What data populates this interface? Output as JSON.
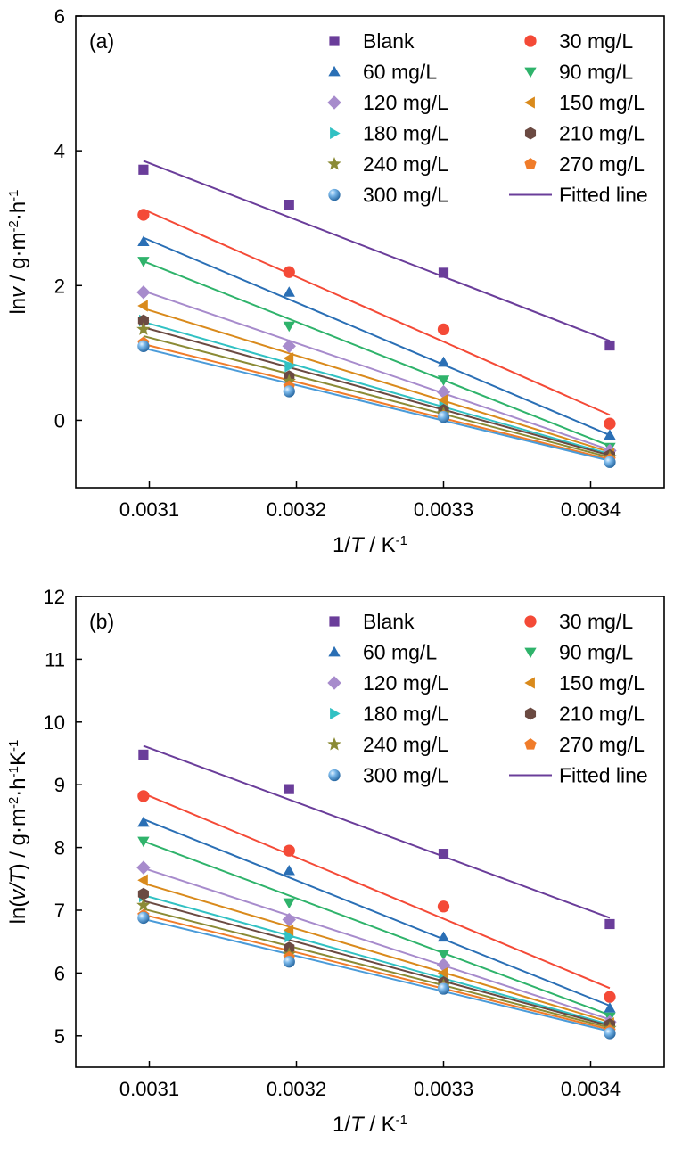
{
  "colors": {
    "Blank": "#6a3d9a",
    "30 mg/L": "#f44a37",
    "60 mg/L": "#2a6fb5",
    "90 mg/L": "#2fb36b",
    "120 mg/L": "#a78bcc",
    "150 mg/L": "#d98a1c",
    "180 mg/L": "#31c1c3",
    "210 mg/L": "#6b4a42",
    "240 mg/L": "#8b8b35",
    "270 mg/L": "#f07c2a",
    "300 mg/L": "#4a9bd9"
  },
  "legend": {
    "fitted_line_label": "Fitted line",
    "fitted_line_color": "#6a3d9a"
  },
  "chart_data": [
    {
      "type": "scatter",
      "panel_label": "(a)",
      "xlabel": {
        "pre": "1/",
        "italic": "T",
        "post": " / K",
        "sup": "-1"
      },
      "ylabel": {
        "pre": "ln",
        "italic": "v",
        "post": " / g·m",
        "sup1": "-2",
        "mid": "·h",
        "sup2": "-1"
      },
      "xlim": [
        0.00305,
        0.00345
      ],
      "ylim": [
        -1,
        6
      ],
      "xticks": [
        "0.0031",
        "0.0032",
        "0.0033",
        "0.0034"
      ],
      "yticks": [
        "0",
        "2",
        "4",
        "6"
      ],
      "x": [
        0.003096,
        0.003195,
        0.0033,
        0.003413
      ],
      "series": [
        {
          "name": "Blank",
          "marker": "square",
          "values": [
            3.72,
            3.2,
            2.19,
            1.11
          ],
          "fit": [
            3.85,
            1.18
          ]
        },
        {
          "name": "30 mg/L",
          "marker": "circle",
          "values": [
            3.05,
            2.2,
            1.35,
            -0.05
          ],
          "fit": [
            3.13,
            0.08
          ]
        },
        {
          "name": "60 mg/L",
          "marker": "triangle-up",
          "values": [
            2.65,
            1.9,
            0.86,
            -0.22
          ],
          "fit": [
            2.71,
            -0.22
          ]
        },
        {
          "name": "90 mg/L",
          "marker": "triangle-down",
          "values": [
            2.36,
            1.4,
            0.6,
            -0.4
          ],
          "fit": [
            2.36,
            -0.38
          ]
        },
        {
          "name": "120 mg/L",
          "marker": "diamond",
          "values": [
            1.9,
            1.1,
            0.42,
            -0.45
          ],
          "fit": [
            1.92,
            -0.44
          ]
        },
        {
          "name": "150 mg/L",
          "marker": "triangle-left",
          "values": [
            1.7,
            0.92,
            0.3,
            -0.5
          ],
          "fit": [
            1.66,
            -0.47
          ]
        },
        {
          "name": "180 mg/L",
          "marker": "triangle-right",
          "values": [
            1.48,
            0.8,
            0.2,
            -0.55
          ],
          "fit": [
            1.46,
            -0.5
          ]
        },
        {
          "name": "210 mg/L",
          "marker": "hexagon",
          "values": [
            1.48,
            0.65,
            0.15,
            -0.52
          ],
          "fit": [
            1.38,
            -0.52
          ]
        },
        {
          "name": "240 mg/L",
          "marker": "star",
          "values": [
            1.35,
            0.58,
            0.1,
            -0.55
          ],
          "fit": [
            1.25,
            -0.55
          ]
        },
        {
          "name": "270 mg/L",
          "marker": "pentagon",
          "values": [
            1.15,
            0.5,
            0.06,
            -0.58
          ],
          "fit": [
            1.13,
            -0.58
          ]
        },
        {
          "name": "300 mg/L",
          "marker": "sphere",
          "values": [
            1.1,
            0.43,
            0.05,
            -0.62
          ],
          "fit": [
            1.07,
            -0.6
          ]
        }
      ]
    },
    {
      "type": "scatter",
      "panel_label": "(b)",
      "xlabel": {
        "pre": "1/",
        "italic": "T",
        "post": " / K",
        "sup": "-1"
      },
      "ylabel": {
        "pre": "ln(",
        "italic": "v/T",
        "post": ") / g·m",
        "sup1": "-2",
        "mid": "·h",
        "sup2": "-1",
        "tail": "K",
        "sup3": "-1"
      },
      "xlim": [
        0.00305,
        0.00345
      ],
      "ylim": [
        4.5,
        12
      ],
      "xticks": [
        "0.0031",
        "0.0032",
        "0.0033",
        "0.0034"
      ],
      "yticks": [
        "5",
        "6",
        "7",
        "8",
        "9",
        "10",
        "11",
        "12"
      ],
      "x": [
        0.003096,
        0.003195,
        0.0033,
        0.003413
      ],
      "series": [
        {
          "name": "Blank",
          "marker": "square",
          "values": [
            9.48,
            8.93,
            7.9,
            6.78
          ],
          "fit": [
            9.62,
            6.88
          ]
        },
        {
          "name": "30 mg/L",
          "marker": "circle",
          "values": [
            8.82,
            7.95,
            7.06,
            5.62
          ],
          "fit": [
            8.86,
            5.76
          ]
        },
        {
          "name": "60 mg/L",
          "marker": "triangle-up",
          "values": [
            8.4,
            7.63,
            6.57,
            5.44
          ],
          "fit": [
            8.45,
            5.48
          ]
        },
        {
          "name": "90 mg/L",
          "marker": "triangle-down",
          "values": [
            8.1,
            7.12,
            6.3,
            5.3
          ],
          "fit": [
            8.1,
            5.33
          ]
        },
        {
          "name": "120 mg/L",
          "marker": "diamond",
          "values": [
            7.68,
            6.85,
            6.13,
            5.22
          ],
          "fit": [
            7.67,
            5.26
          ]
        },
        {
          "name": "150 mg/L",
          "marker": "triangle-left",
          "values": [
            7.48,
            6.68,
            6.0,
            5.2
          ],
          "fit": [
            7.43,
            5.22
          ]
        },
        {
          "name": "180 mg/L",
          "marker": "triangle-right",
          "values": [
            7.22,
            6.58,
            5.9,
            5.14
          ],
          "fit": [
            7.24,
            5.18
          ]
        },
        {
          "name": "210 mg/L",
          "marker": "hexagon",
          "values": [
            7.26,
            6.4,
            5.85,
            5.18
          ],
          "fit": [
            7.15,
            5.16
          ]
        },
        {
          "name": "240 mg/L",
          "marker": "star",
          "values": [
            7.08,
            6.3,
            5.8,
            5.12
          ],
          "fit": [
            7.02,
            5.13
          ]
        },
        {
          "name": "270 mg/L",
          "marker": "pentagon",
          "values": [
            6.92,
            6.25,
            5.76,
            5.08
          ],
          "fit": [
            6.93,
            5.1
          ]
        },
        {
          "name": "300 mg/L",
          "marker": "sphere",
          "values": [
            6.88,
            6.18,
            5.75,
            5.04
          ],
          "fit": [
            6.86,
            5.07
          ]
        }
      ]
    }
  ]
}
